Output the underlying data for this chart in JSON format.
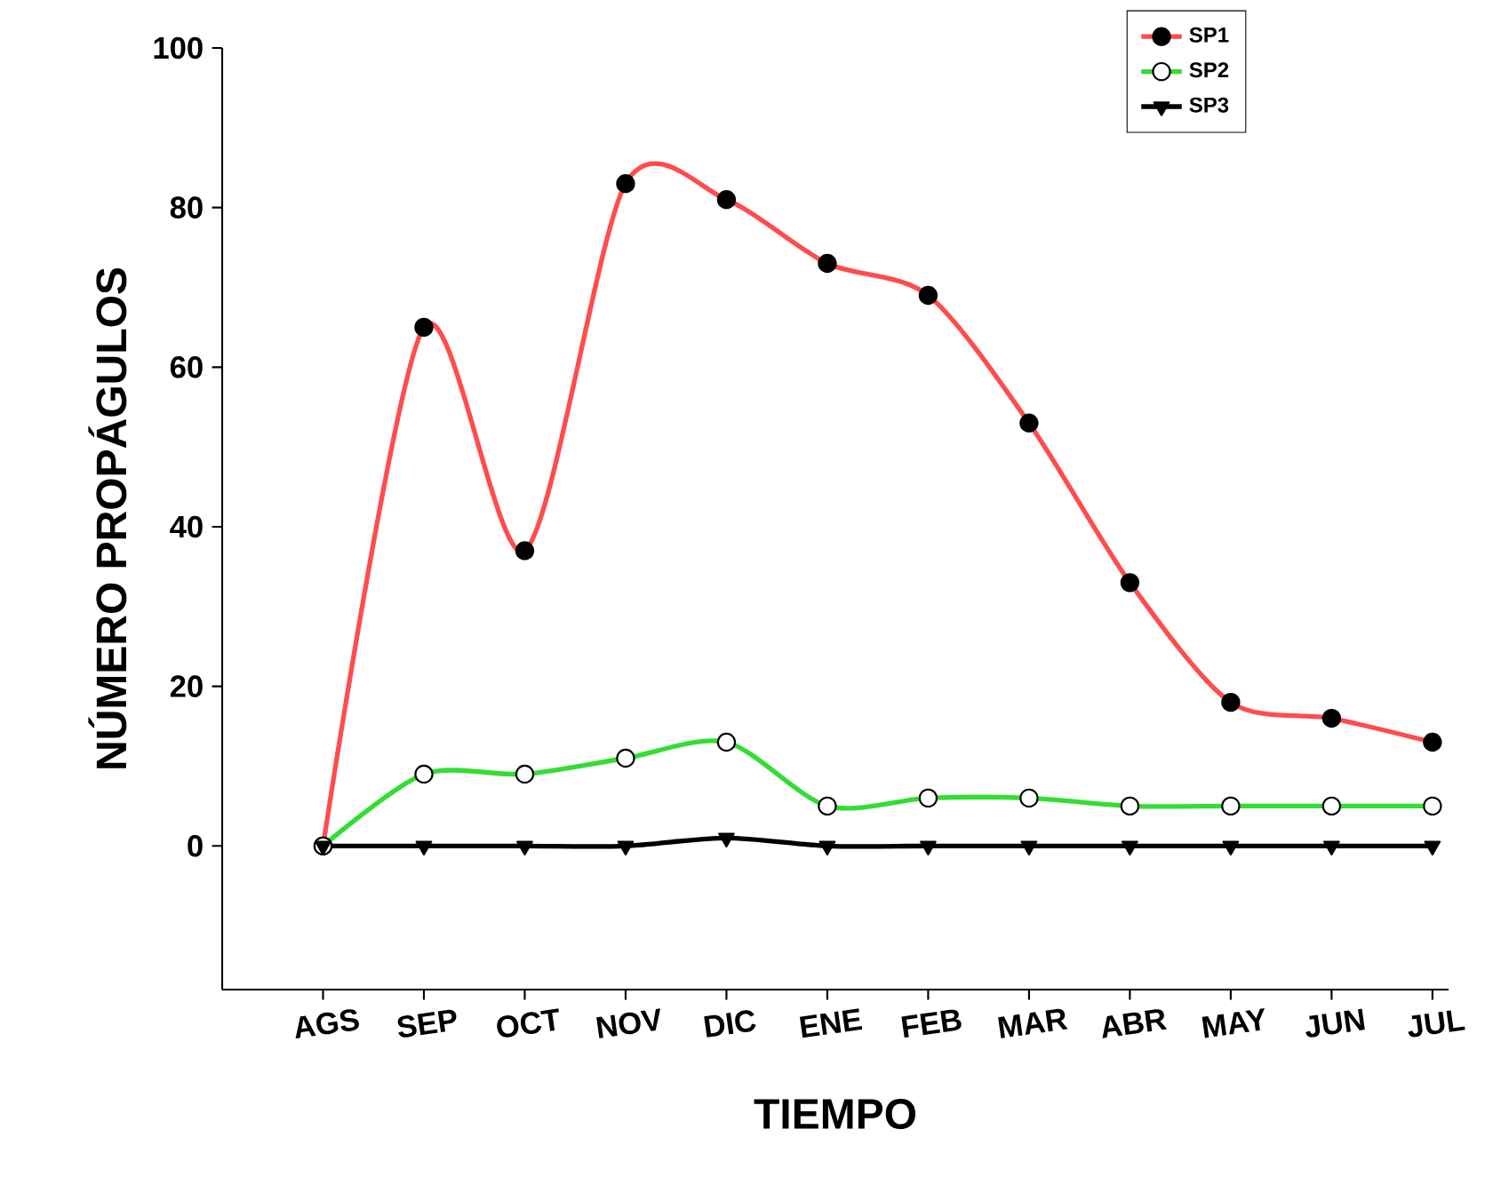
{
  "chart_data": {
    "type": "line",
    "xlabel": "TIEMPO",
    "ylabel": "NÚMERO PROPÁGULOS",
    "categories": [
      "AGS",
      "SEP",
      "OCT",
      "NOV",
      "DIC",
      "ENE",
      "FEB",
      "MAR",
      "ABR",
      "MAY",
      "JUN",
      "JUL"
    ],
    "series": [
      {
        "name": "SP1",
        "color": "#ff4c4c",
        "marker": "circle",
        "values": [
          0,
          65,
          37,
          83,
          81,
          73,
          69,
          53,
          33,
          18,
          16,
          13
        ]
      },
      {
        "name": "SP2",
        "color": "#33dd33",
        "marker": "circle",
        "values": [
          0,
          9,
          9,
          11,
          13,
          5,
          6,
          6,
          5,
          5,
          5,
          5
        ]
      },
      {
        "name": "SP3",
        "color": "#000000",
        "marker": "triangle",
        "values": [
          0,
          0,
          0,
          0,
          1,
          0,
          0,
          0,
          0,
          0,
          0,
          0
        ]
      }
    ],
    "ylim": [
      -18,
      100
    ],
    "yticks": [
      0,
      20,
      40,
      60,
      80,
      100
    ],
    "grid": false,
    "legend": "top right"
  }
}
